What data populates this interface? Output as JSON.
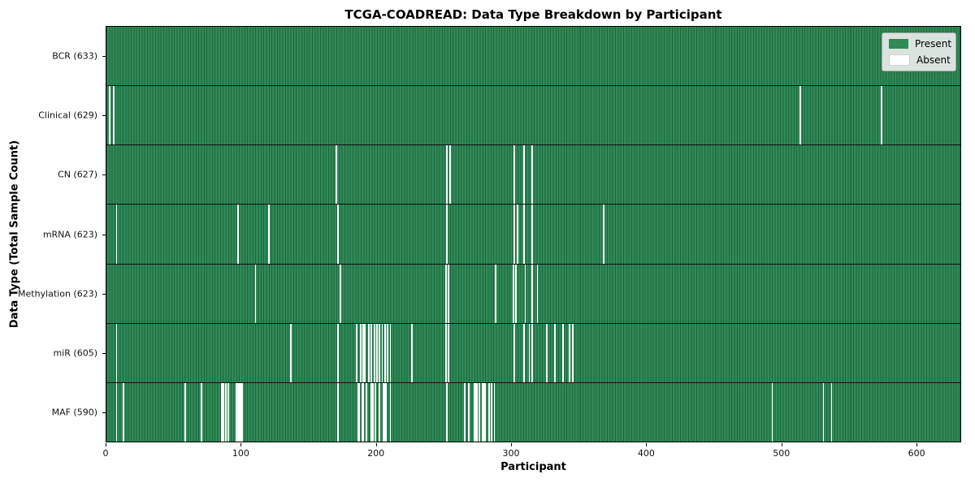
{
  "title": "TCGA-COADREAD: Data Type Breakdown by Participant",
  "axes": {
    "xlabel": "Participant",
    "ylabel": "Data Type (Total Sample Count)"
  },
  "colors": {
    "present": "#2e8b57",
    "absent": "#ffffff",
    "plot_border": "#000000",
    "row_divider": "#101010",
    "legend_bg": "#e9ebe9"
  },
  "chart_data": {
    "type": "heatmap",
    "title": "TCGA-COADREAD: Data Type Breakdown by Participant",
    "xlabel": "Participant",
    "ylabel": "Data Type (Total Sample Count)",
    "x_ticks": [
      0,
      100,
      200,
      300,
      400,
      500,
      600
    ],
    "xlim": [
      0,
      633
    ],
    "n_participants": 633,
    "grid": false,
    "cell_states": {
      "present_value": 1,
      "absent_value": 0
    },
    "legend": {
      "position": "upper right",
      "entries": [
        {
          "label": "Present",
          "color": "#2e8b57"
        },
        {
          "label": "Absent",
          "color": "#ffffff"
        }
      ]
    },
    "rows": [
      {
        "label": "BCR (633)",
        "data_type": "BCR",
        "present_count": 633,
        "absent_count": 0,
        "absent_indices": []
      },
      {
        "label": "Clinical (629)",
        "data_type": "Clinical",
        "present_count": 629,
        "absent_count": 4,
        "absent_indices": [
          2,
          5,
          514,
          574
        ]
      },
      {
        "label": "CN (627)",
        "data_type": "CN",
        "present_count": 627,
        "absent_count": 6,
        "absent_indices": [
          170,
          252,
          254,
          302,
          309,
          315
        ]
      },
      {
        "label": "mRNA (623)",
        "data_type": "mRNA",
        "present_count": 623,
        "absent_count": 10,
        "absent_indices": [
          7,
          97,
          120,
          171,
          252,
          302,
          304,
          309,
          315,
          368
        ]
      },
      {
        "label": "Methylation (623)",
        "data_type": "Methylation",
        "present_count": 623,
        "absent_count": 10,
        "absent_indices": [
          110,
          173,
          251,
          253,
          288,
          301,
          303,
          310,
          315,
          319
        ]
      },
      {
        "label": "miR (605)",
        "data_type": "miR",
        "present_count": 605,
        "absent_count": 28,
        "absent_indices": [
          7,
          136,
          171,
          185,
          188,
          190,
          191,
          194,
          196,
          198,
          200,
          202,
          204,
          206,
          208,
          210,
          226,
          251,
          253,
          302,
          309,
          313,
          315,
          326,
          332,
          338,
          343,
          345
        ]
      },
      {
        "label": "MAF (590)",
        "data_type": "MAF",
        "present_count": 590,
        "absent_count": 43,
        "absent_indices": [
          7,
          12,
          58,
          70,
          85,
          86,
          88,
          90,
          96,
          97,
          98,
          99,
          100,
          171,
          186,
          187,
          189,
          190,
          192,
          196,
          197,
          199,
          202,
          205,
          206,
          207,
          210,
          252,
          265,
          268,
          272,
          273,
          274,
          276,
          278,
          279,
          280,
          283,
          285,
          287,
          493,
          531,
          537
        ]
      }
    ]
  }
}
